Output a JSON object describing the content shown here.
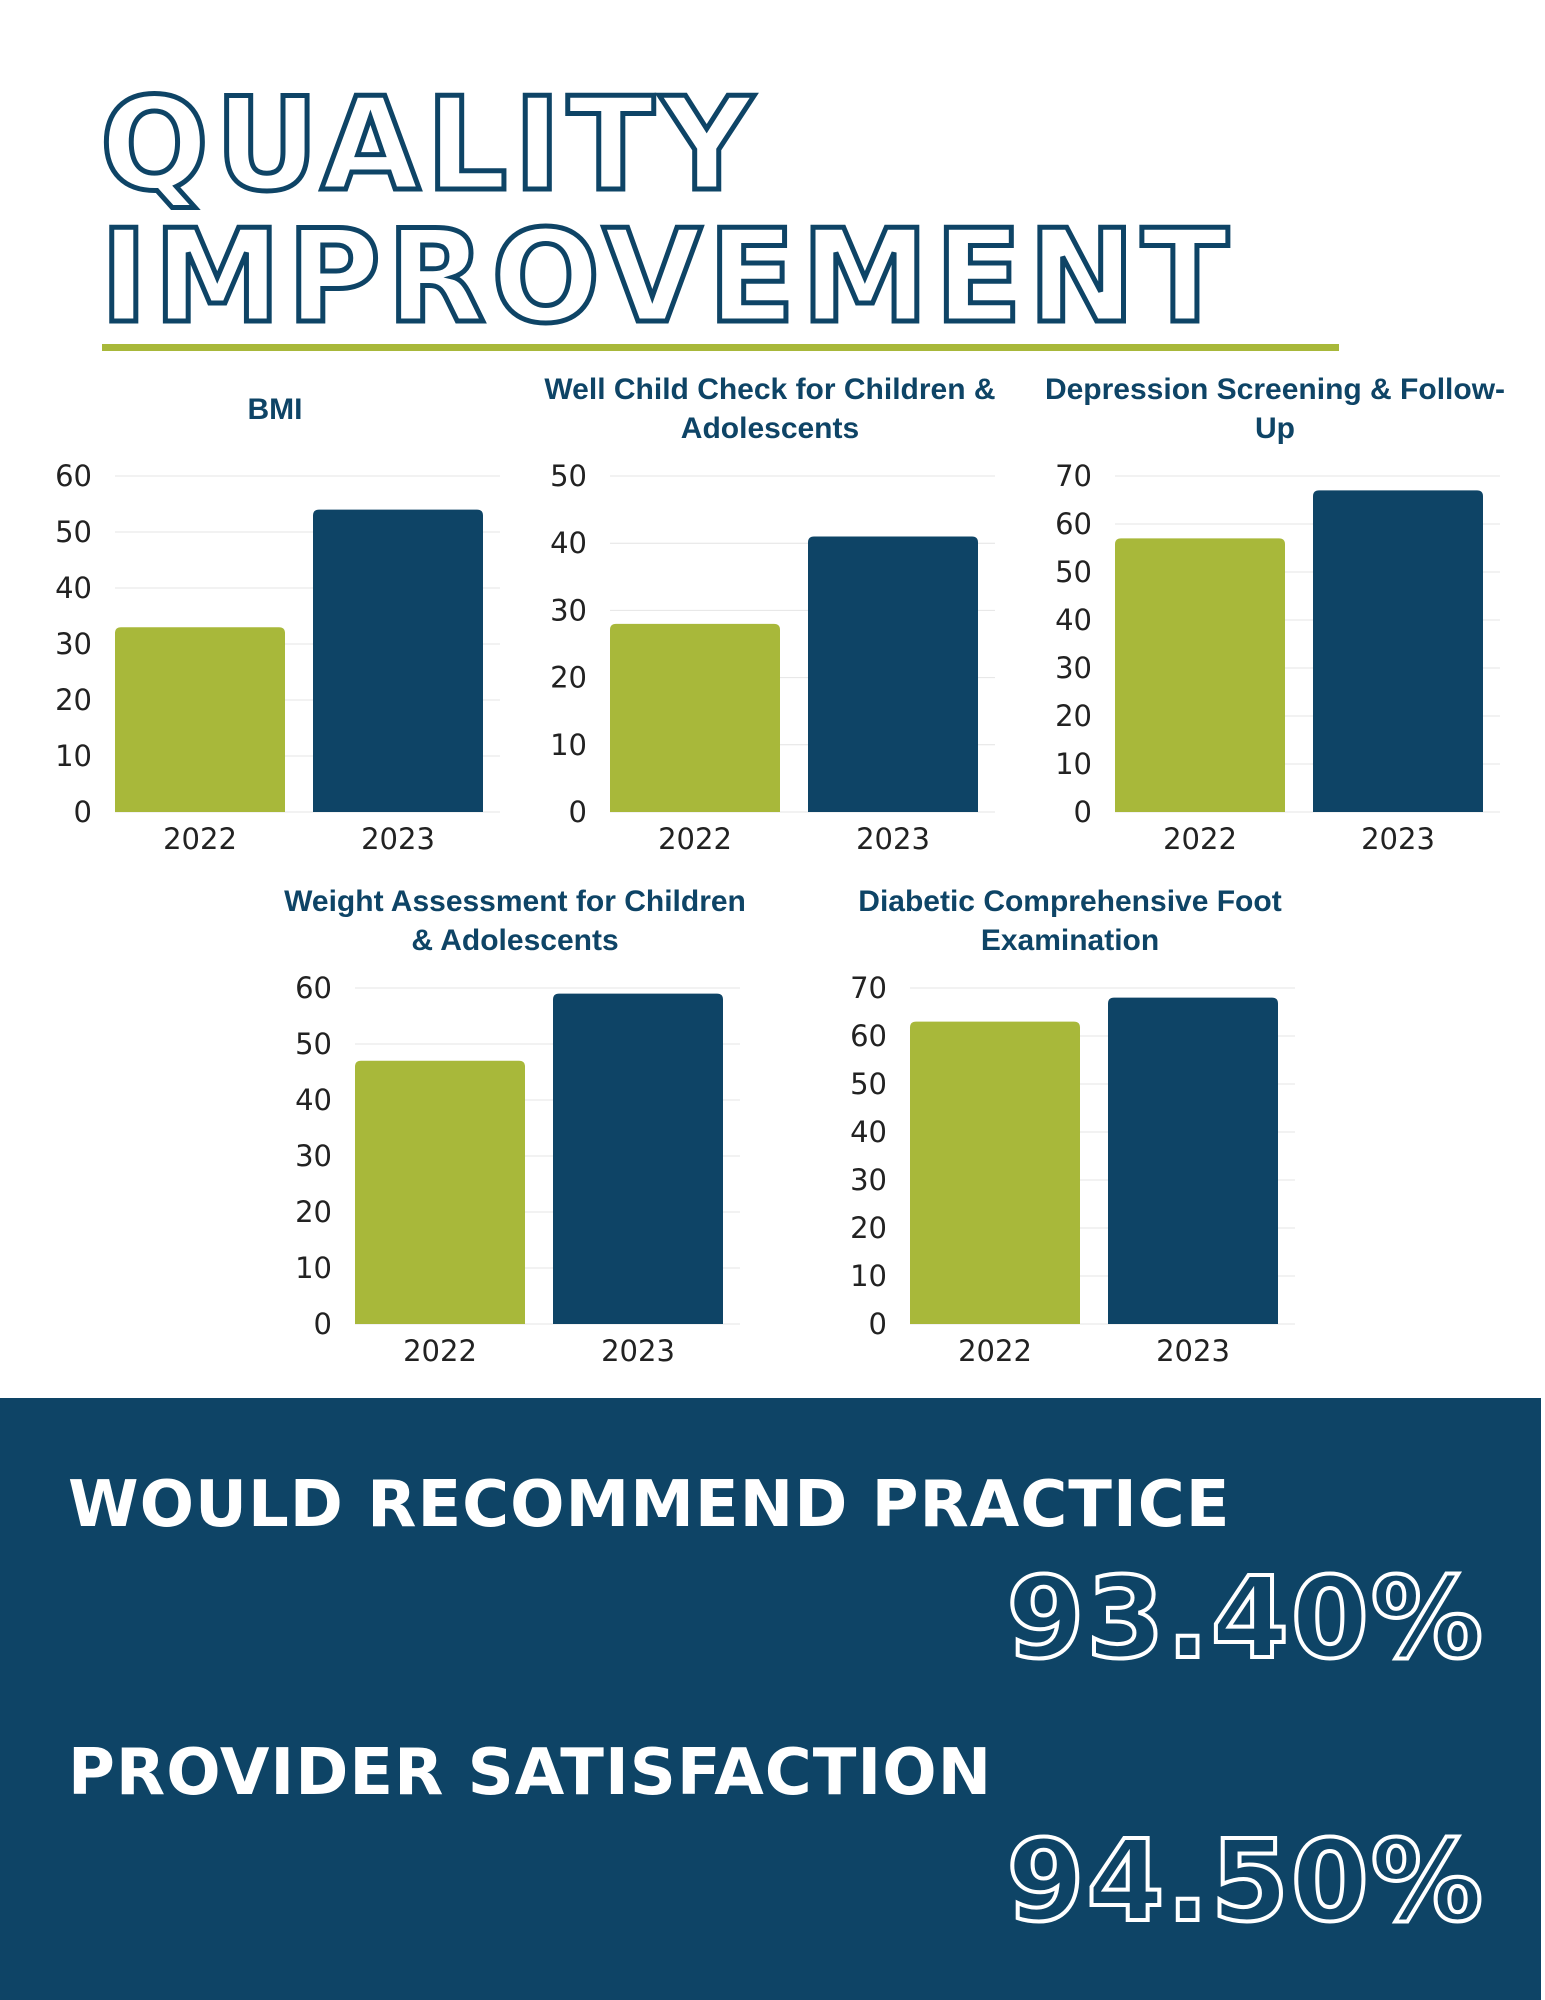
{
  "header": {
    "title_line1": "QUALITY",
    "title_line2": "IMPROVEMENT"
  },
  "colors": {
    "navy": "#0e4466",
    "green": "#a8b83a"
  },
  "chart_data": [
    {
      "type": "bar",
      "title": "BMI",
      "categories": [
        "2022",
        "2023"
      ],
      "values": [
        33,
        54
      ],
      "ylim": [
        0,
        60
      ],
      "yticks": [
        0,
        10,
        20,
        30,
        40,
        50,
        60
      ],
      "xlabel": "",
      "ylabel": "",
      "grid": true
    },
    {
      "type": "bar",
      "title": "Well Child Check for Children & Adolescents",
      "categories": [
        "2022",
        "2023"
      ],
      "values": [
        28,
        41
      ],
      "ylim": [
        0,
        50
      ],
      "yticks": [
        0,
        10,
        20,
        30,
        40,
        50
      ],
      "xlabel": "",
      "ylabel": "",
      "grid": true
    },
    {
      "type": "bar",
      "title": "Depression Screening & Follow-Up",
      "categories": [
        "2022",
        "2023"
      ],
      "values": [
        57,
        67
      ],
      "ylim": [
        0,
        70
      ],
      "yticks": [
        0,
        10,
        20,
        30,
        40,
        50,
        60,
        70
      ],
      "xlabel": "",
      "ylabel": "",
      "grid": true
    },
    {
      "type": "bar",
      "title": "Weight Assessment for Children & Adolescents",
      "categories": [
        "2022",
        "2023"
      ],
      "values": [
        47,
        59
      ],
      "ylim": [
        0,
        60
      ],
      "yticks": [
        0,
        10,
        20,
        30,
        40,
        50,
        60
      ],
      "xlabel": "",
      "ylabel": "",
      "grid": true
    },
    {
      "type": "bar",
      "title": "Diabetic Comprehensive Foot Examination",
      "categories": [
        "2022",
        "2023"
      ],
      "values": [
        63,
        68
      ],
      "ylim": [
        0,
        70
      ],
      "yticks": [
        0,
        10,
        20,
        30,
        40,
        50,
        60,
        70
      ],
      "xlabel": "",
      "ylabel": "",
      "grid": true
    }
  ],
  "stats": {
    "recommend_label": "WOULD RECOMMEND PRACTICE",
    "recommend_value": "93.40%",
    "satisfaction_label": "PROVIDER SATISFACTION",
    "satisfaction_value": "94.50%"
  }
}
